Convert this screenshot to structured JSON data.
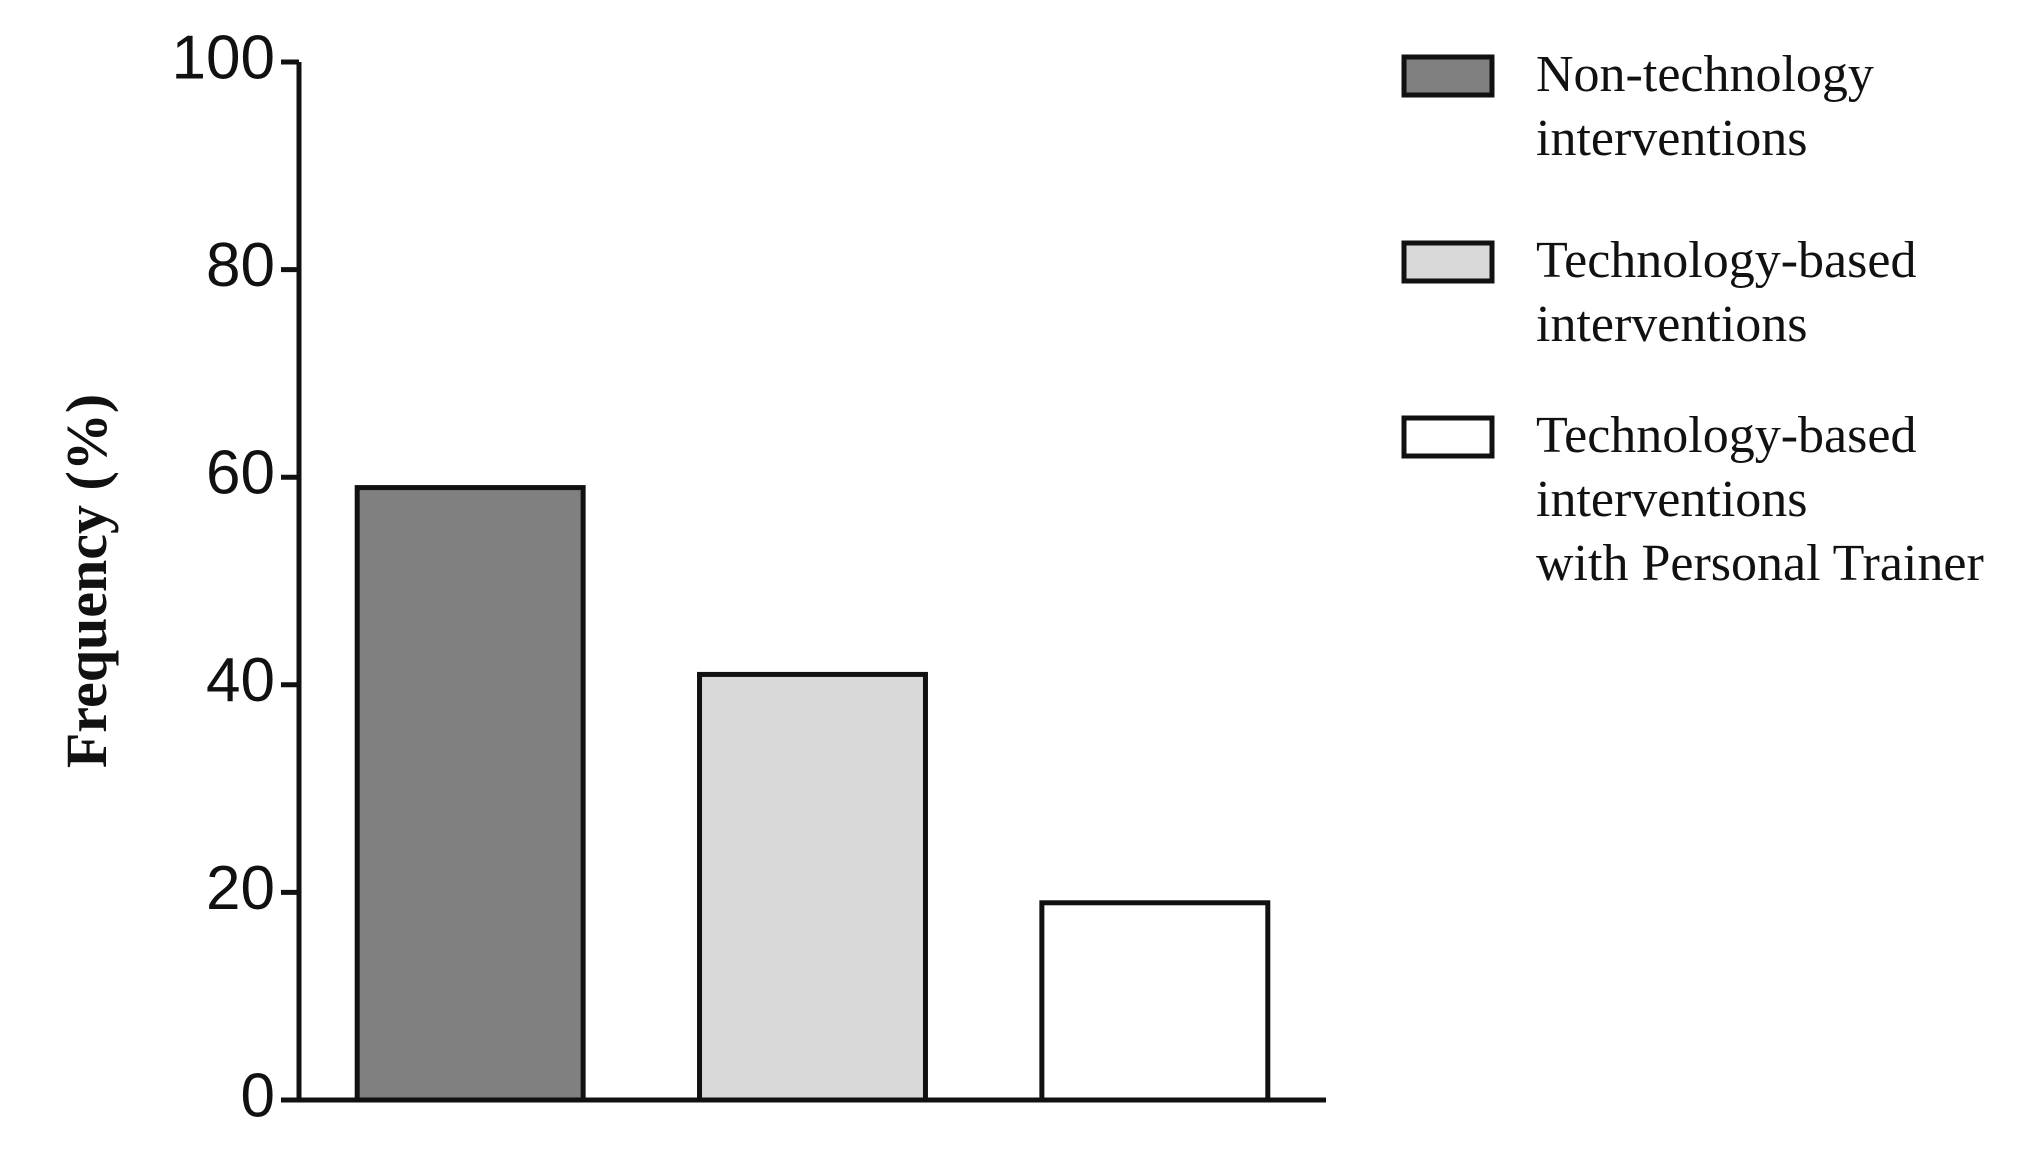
{
  "chart_data": {
    "type": "bar",
    "y_label": "Frequency (%)",
    "categories": [
      null
    ],
    "series": [
      {
        "name": "Non-technology\ninterventions",
        "color": "#808080",
        "values": [
          59
        ]
      },
      {
        "name": "Technology-based\ninterventions",
        "color": "#d9d9d9",
        "values": [
          41
        ]
      },
      {
        "name": "Technology-based\ninterventions\nwith Personal Trainer",
        "color": "#ffffff",
        "values": [
          19
        ]
      }
    ],
    "ylim": [
      0,
      100
    ],
    "yticks": [
      0,
      20,
      40,
      60,
      80,
      100
    ],
    "legend": "right"
  }
}
